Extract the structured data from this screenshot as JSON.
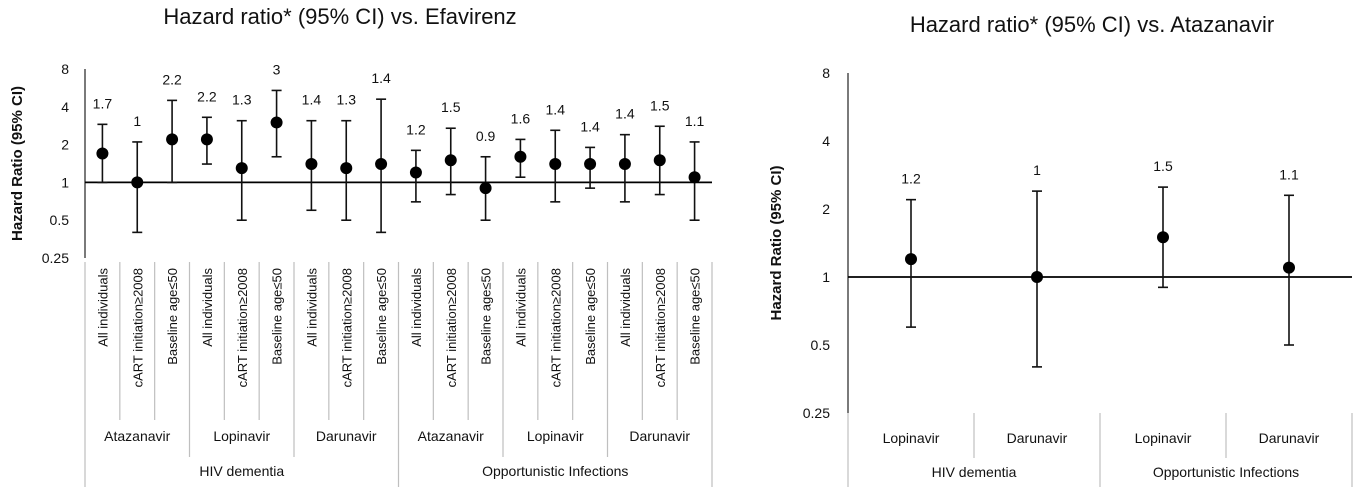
{
  "chart_data": [
    {
      "type": "scatter",
      "title": "Hazard ratio* (95% CI) vs. Efavirenz",
      "ylabel": "Hazard Ratio (95% CI)",
      "yscale": "log2",
      "ylim": [
        0.25,
        8
      ],
      "yticks": [
        "8",
        "4",
        "2",
        "1",
        "0.5",
        "0.25"
      ],
      "reference_line": 1,
      "categories": [
        "All individuals",
        "cART initiation≥2008",
        "Baseline age≤50",
        "All individuals",
        "cART initiation≥2008",
        "Baseline age≤50",
        "All individuals",
        "cART initiation≥2008",
        "Baseline age≤50",
        "All individuals",
        "cART initiation≥2008",
        "Baseline age≤50",
        "All individuals",
        "cART initiation≥2008",
        "Baseline age≤50",
        "All individuals",
        "cART initiation≥2008",
        "Baseline age≤50"
      ],
      "drug_groups": [
        "Atazanavir",
        "Lopinavir",
        "Darunavir",
        "Atazanavir",
        "Lopinavir",
        "Darunavir"
      ],
      "outcome_groups": [
        "HIV dementia",
        "Opportunistic Infections"
      ],
      "hr": [
        1.7,
        1.0,
        2.2,
        2.2,
        1.3,
        3.0,
        1.4,
        1.3,
        1.4,
        1.2,
        1.5,
        0.9,
        1.6,
        1.4,
        1.4,
        1.4,
        1.5,
        1.1
      ],
      "ci_low": [
        1.0,
        0.4,
        1.0,
        1.4,
        0.5,
        1.6,
        0.6,
        0.5,
        0.4,
        0.7,
        0.8,
        0.5,
        1.1,
        0.7,
        0.9,
        0.7,
        0.8,
        0.5
      ],
      "ci_high": [
        2.9,
        2.1,
        4.5,
        3.3,
        3.1,
        5.4,
        3.1,
        3.1,
        4.6,
        1.8,
        2.7,
        1.6,
        2.2,
        2.6,
        1.9,
        2.4,
        2.8,
        2.1
      ],
      "data_labels": [
        "1.7",
        "1",
        "2.2",
        "2.2",
        "1.3",
        "3",
        "1.4",
        "1.3",
        "1.4",
        "1.2",
        "1.5",
        "0.9",
        "1.6",
        "1.4",
        "1.4",
        "1.4",
        "1.5",
        "1.1"
      ]
    },
    {
      "type": "scatter",
      "title": "Hazard ratio* (95% CI) vs. Atazanavir",
      "ylabel": "Hazard Ratio (95% CI)",
      "yscale": "log2",
      "ylim": [
        0.25,
        8
      ],
      "yticks": [
        "8",
        "4",
        "2",
        "1",
        "0.5",
        "0.25"
      ],
      "reference_line": 1,
      "categories": [
        "Lopinavir",
        "Darunavir",
        "Lopinavir",
        "Darunavir"
      ],
      "outcome_groups": [
        "HIV dementia",
        "Opportunistic Infections"
      ],
      "hr": [
        1.2,
        1.0,
        1.5,
        1.1
      ],
      "ci_low": [
        0.6,
        0.4,
        0.9,
        0.5
      ],
      "ci_high": [
        2.2,
        2.4,
        2.5,
        2.3
      ],
      "data_labels": [
        "1.2",
        "1",
        "1.5",
        "1.1"
      ]
    }
  ]
}
